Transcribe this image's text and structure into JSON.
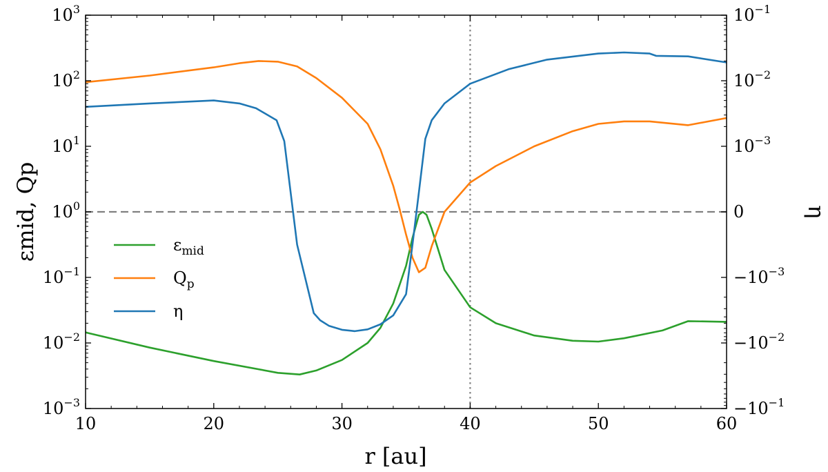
{
  "chart_data": {
    "type": "line",
    "xlabel": "r [au]",
    "ylabel_left": "εmid, Qp",
    "ylabel_right": "η",
    "xlim": [
      10,
      60
    ],
    "ylim_left": [
      0.001,
      1000
    ],
    "left_scale": "log",
    "right_scale": "symlog",
    "x_ticks": [
      10,
      20,
      30,
      40,
      50,
      60
    ],
    "x_tick_labels": [
      "10",
      "20",
      "30",
      "40",
      "50",
      "60"
    ],
    "left_ticks": [
      {
        "value": 1000,
        "base": "10",
        "exp": "3"
      },
      {
        "value": 100,
        "base": "10",
        "exp": "2"
      },
      {
        "value": 10,
        "base": "10",
        "exp": "1"
      },
      {
        "value": 1,
        "base": "10",
        "exp": "0"
      },
      {
        "value": 0.1,
        "base": "10",
        "exp": "−1"
      },
      {
        "value": 0.01,
        "base": "10",
        "exp": "−2"
      },
      {
        "value": 0.001,
        "base": "10",
        "exp": "−3"
      }
    ],
    "right_ticks": [
      {
        "value": 0.1,
        "base": "10",
        "exp": "−1"
      },
      {
        "value": 0.01,
        "base": "10",
        "exp": "−2"
      },
      {
        "value": 0.001,
        "base": "10",
        "exp": "−3"
      },
      {
        "value": 0,
        "base": "0",
        "exp": ""
      },
      {
        "value": -0.001,
        "base": "−10",
        "exp": "−3"
      },
      {
        "value": -0.01,
        "base": "−10",
        "exp": "−2"
      },
      {
        "value": -0.1,
        "base": "−10",
        "exp": "−1"
      }
    ],
    "reference_lines": [
      {
        "orientation": "horizontal",
        "axis": "left",
        "value": 1,
        "style": "dashed",
        "color": "#808080"
      },
      {
        "orientation": "vertical",
        "value": 40,
        "style": "dotted",
        "color": "#808080"
      }
    ],
    "legend_position": "center-left",
    "grid": false,
    "series": [
      {
        "name": "εmid",
        "legend_main": "ε",
        "legend_sub": "mid",
        "color": "#2ca02c",
        "axis": "left",
        "x": [
          10,
          15,
          20,
          25,
          26.7,
          28,
          30,
          32,
          33,
          34,
          35,
          35.5,
          36,
          36.3,
          36.6,
          37,
          38,
          40,
          42,
          45,
          48,
          50,
          52,
          55,
          57,
          60
        ],
        "y": [
          0.0145,
          0.0085,
          0.0053,
          0.0035,
          0.0033,
          0.0038,
          0.0055,
          0.01,
          0.017,
          0.04,
          0.15,
          0.4,
          0.9,
          1.0,
          0.9,
          0.55,
          0.13,
          0.035,
          0.02,
          0.013,
          0.0108,
          0.0105,
          0.0118,
          0.0155,
          0.0215,
          0.021
        ]
      },
      {
        "name": "Qp",
        "legend_main": "Q",
        "legend_sub": "p",
        "color": "#ff7f0e",
        "axis": "left",
        "x": [
          10,
          15,
          20,
          22,
          23.5,
          25,
          26.5,
          28,
          30,
          32,
          33,
          34,
          34.5,
          35,
          35.5,
          36,
          36.5,
          37,
          38,
          40,
          42,
          45,
          48,
          50,
          52,
          54,
          57,
          60
        ],
        "y": [
          95,
          120,
          160,
          185,
          200,
          195,
          165,
          110,
          55,
          22,
          9,
          2.5,
          1.1,
          0.45,
          0.2,
          0.12,
          0.14,
          0.3,
          1.0,
          2.8,
          5,
          10,
          17,
          22,
          24,
          24,
          21,
          27
        ]
      },
      {
        "name": "η",
        "legend_main": "η",
        "legend_sub": "",
        "color": "#1f77b4",
        "axis": "right",
        "x": [
          10,
          15,
          20,
          22,
          23.3,
          24.9,
          25.5,
          26.5,
          27.8,
          28.3,
          29,
          30,
          31,
          32,
          33,
          34,
          35,
          35.5,
          36,
          36.5,
          37,
          38,
          40,
          43,
          46,
          50,
          52,
          54,
          54.5,
          57,
          60
        ],
        "y": [
          0.004,
          0.0045,
          0.005,
          0.0045,
          0.0038,
          0.0025,
          0.0012,
          -0.0005,
          -0.0035,
          -0.0045,
          -0.0055,
          -0.0063,
          -0.0066,
          -0.0062,
          -0.0052,
          -0.0038,
          -0.0018,
          -0.0005,
          0.0003,
          0.0013,
          0.0025,
          0.0045,
          0.009,
          0.015,
          0.021,
          0.026,
          0.027,
          0.026,
          0.024,
          0.0235,
          0.019
        ]
      }
    ]
  }
}
